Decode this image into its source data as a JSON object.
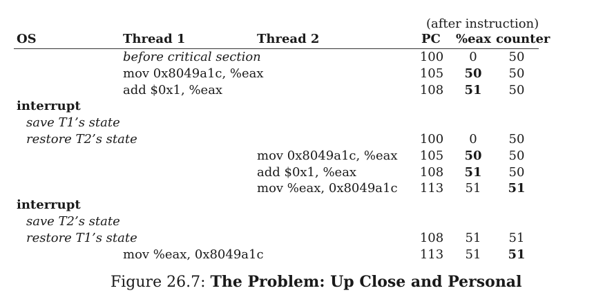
{
  "header": {
    "after_instruction": "(after instruction)",
    "os": "OS",
    "thread1": "Thread 1",
    "thread2": "Thread 2",
    "pc": "PC",
    "eax": "%eax",
    "counter": "counter"
  },
  "rows": [
    {
      "os": "",
      "os_style": "",
      "t1": "before critical section",
      "t1_style": "italic",
      "t2": "",
      "pc": "100",
      "eax": "0",
      "eax_bold": false,
      "counter": "50",
      "counter_bold": false
    },
    {
      "os": "",
      "os_style": "",
      "t1": "mov 0x8049a1c, %eax",
      "t1_style": "",
      "t2": "",
      "pc": "105",
      "eax": "50",
      "eax_bold": true,
      "counter": "50",
      "counter_bold": false
    },
    {
      "os": "",
      "os_style": "",
      "t1": "add $0x1, %eax",
      "t1_style": "",
      "t2": "",
      "pc": "108",
      "eax": "51",
      "eax_bold": true,
      "counter": "50",
      "counter_bold": false
    },
    {
      "os": "interrupt",
      "os_style": "bold",
      "t1": "",
      "t1_style": "",
      "t2": "",
      "pc": "",
      "eax": "",
      "eax_bold": false,
      "counter": "",
      "counter_bold": false
    },
    {
      "os": "save T1’s state",
      "os_style": "italic-indent",
      "t1": "",
      "t1_style": "",
      "t2": "",
      "pc": "",
      "eax": "",
      "eax_bold": false,
      "counter": "",
      "counter_bold": false
    },
    {
      "os": "restore T2’s state",
      "os_style": "italic-indent",
      "t1": "",
      "t1_style": "",
      "t2": "",
      "pc": "100",
      "eax": "0",
      "eax_bold": false,
      "counter": "50",
      "counter_bold": false
    },
    {
      "os": "",
      "os_style": "",
      "t1": "",
      "t1_style": "",
      "t2": "mov 0x8049a1c, %eax",
      "pc": "105",
      "eax": "50",
      "eax_bold": true,
      "counter": "50",
      "counter_bold": false
    },
    {
      "os": "",
      "os_style": "",
      "t1": "",
      "t1_style": "",
      "t2": "add $0x1, %eax",
      "pc": "108",
      "eax": "51",
      "eax_bold": true,
      "counter": "50",
      "counter_bold": false
    },
    {
      "os": "",
      "os_style": "",
      "t1": "",
      "t1_style": "",
      "t2": "mov %eax, 0x8049a1c",
      "pc": "113",
      "eax": "51",
      "eax_bold": false,
      "counter": "51",
      "counter_bold": true
    },
    {
      "os": "interrupt",
      "os_style": "bold",
      "t1": "",
      "t1_style": "",
      "t2": "",
      "pc": "",
      "eax": "",
      "eax_bold": false,
      "counter": "",
      "counter_bold": false
    },
    {
      "os": "save T2’s state",
      "os_style": "italic-indent",
      "t1": "",
      "t1_style": "",
      "t2": "",
      "pc": "",
      "eax": "",
      "eax_bold": false,
      "counter": "",
      "counter_bold": false
    },
    {
      "os": "restore T1’s state",
      "os_style": "italic-indent",
      "t1": "",
      "t1_style": "",
      "t2": "",
      "pc": "108",
      "eax": "51",
      "eax_bold": false,
      "counter": "51",
      "counter_bold": false
    },
    {
      "os": "",
      "os_style": "",
      "t1": "mov %eax, 0x8049a1c",
      "t1_style": "",
      "t2": "",
      "pc": "113",
      "eax": "51",
      "eax_bold": false,
      "counter": "51",
      "counter_bold": true
    }
  ],
  "caption": {
    "prefix": "Figure 26.7: ",
    "title": "The Problem: Up Close and Personal"
  }
}
